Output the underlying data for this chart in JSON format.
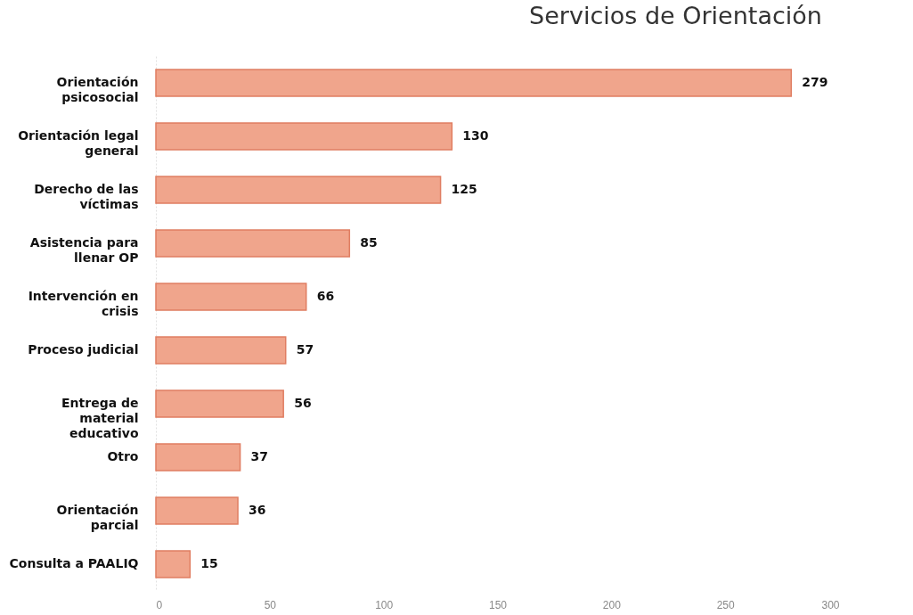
{
  "chart_data": {
    "type": "bar",
    "orientation": "horizontal",
    "title": "Servicios de Orientación",
    "categories": [
      "Orientación psicosocial",
      "Orientación legal general",
      "Derecho de las víctimas",
      "Asistencia para llenar OP",
      "Intervención en crisis",
      "Proceso judicial",
      "Entrega de material educativo",
      "Otro",
      "Orientación parcial",
      "Consulta a PAALIQ"
    ],
    "values": [
      279,
      130,
      125,
      85,
      66,
      57,
      56,
      37,
      36,
      15
    ],
    "color": "#f0a58c",
    "xlim": [
      0,
      300
    ],
    "xticks": [
      0,
      50,
      100,
      150,
      200,
      250,
      300
    ],
    "grid": false,
    "data_labels": true
  }
}
